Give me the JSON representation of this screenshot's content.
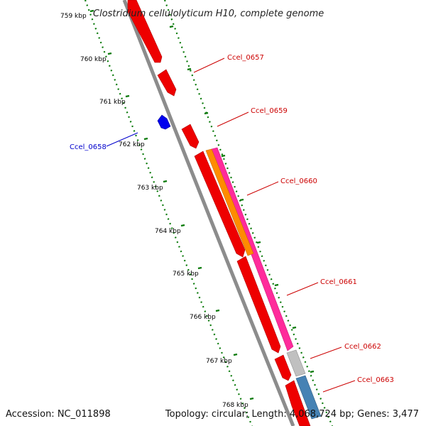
{
  "map": {
    "title": "Clostridium cellulolyticum H10, complete genome",
    "footer": {
      "accession": "Accession: NC_011898",
      "summary": "Topology: circular; Length: 4,068,724 bp; Genes: 3,477"
    },
    "ticks": [
      "759 kbp",
      "760 kbp",
      "761 kbp",
      "762 kbp",
      "763 kbp",
      "764 kbp",
      "765 kbp",
      "766 kbp",
      "767 kbp",
      "768 kbp"
    ],
    "gene_labels": [
      {
        "id": "ccel-0657",
        "text": "Ccel_0657",
        "color": "#cc0000"
      },
      {
        "id": "ccel-0658",
        "text": "Ccel_0658",
        "color": "#0000cc"
      },
      {
        "id": "ccel-0659",
        "text": "Ccel_0659",
        "color": "#cc0000"
      },
      {
        "id": "ccel-0660",
        "text": "Ccel_0660",
        "color": "#cc0000"
      },
      {
        "id": "ccel-0661",
        "text": "Ccel_0661",
        "color": "#cc0000"
      },
      {
        "id": "ccel-0662",
        "text": "Ccel_0662",
        "color": "#cc0000"
      },
      {
        "id": "ccel-0663",
        "text": "Ccel_0663",
        "color": "#cc0000"
      }
    ],
    "colors": {
      "backbone": "#8c8c8c",
      "gene_forward": "#ee0000",
      "gene_reverse": "#0000ee",
      "rrna": "#ff2b9b",
      "trna": "#ff8c00",
      "misc": "#c0c0c0",
      "other": "#4682b4",
      "tick": "#0a7a0a"
    }
  }
}
